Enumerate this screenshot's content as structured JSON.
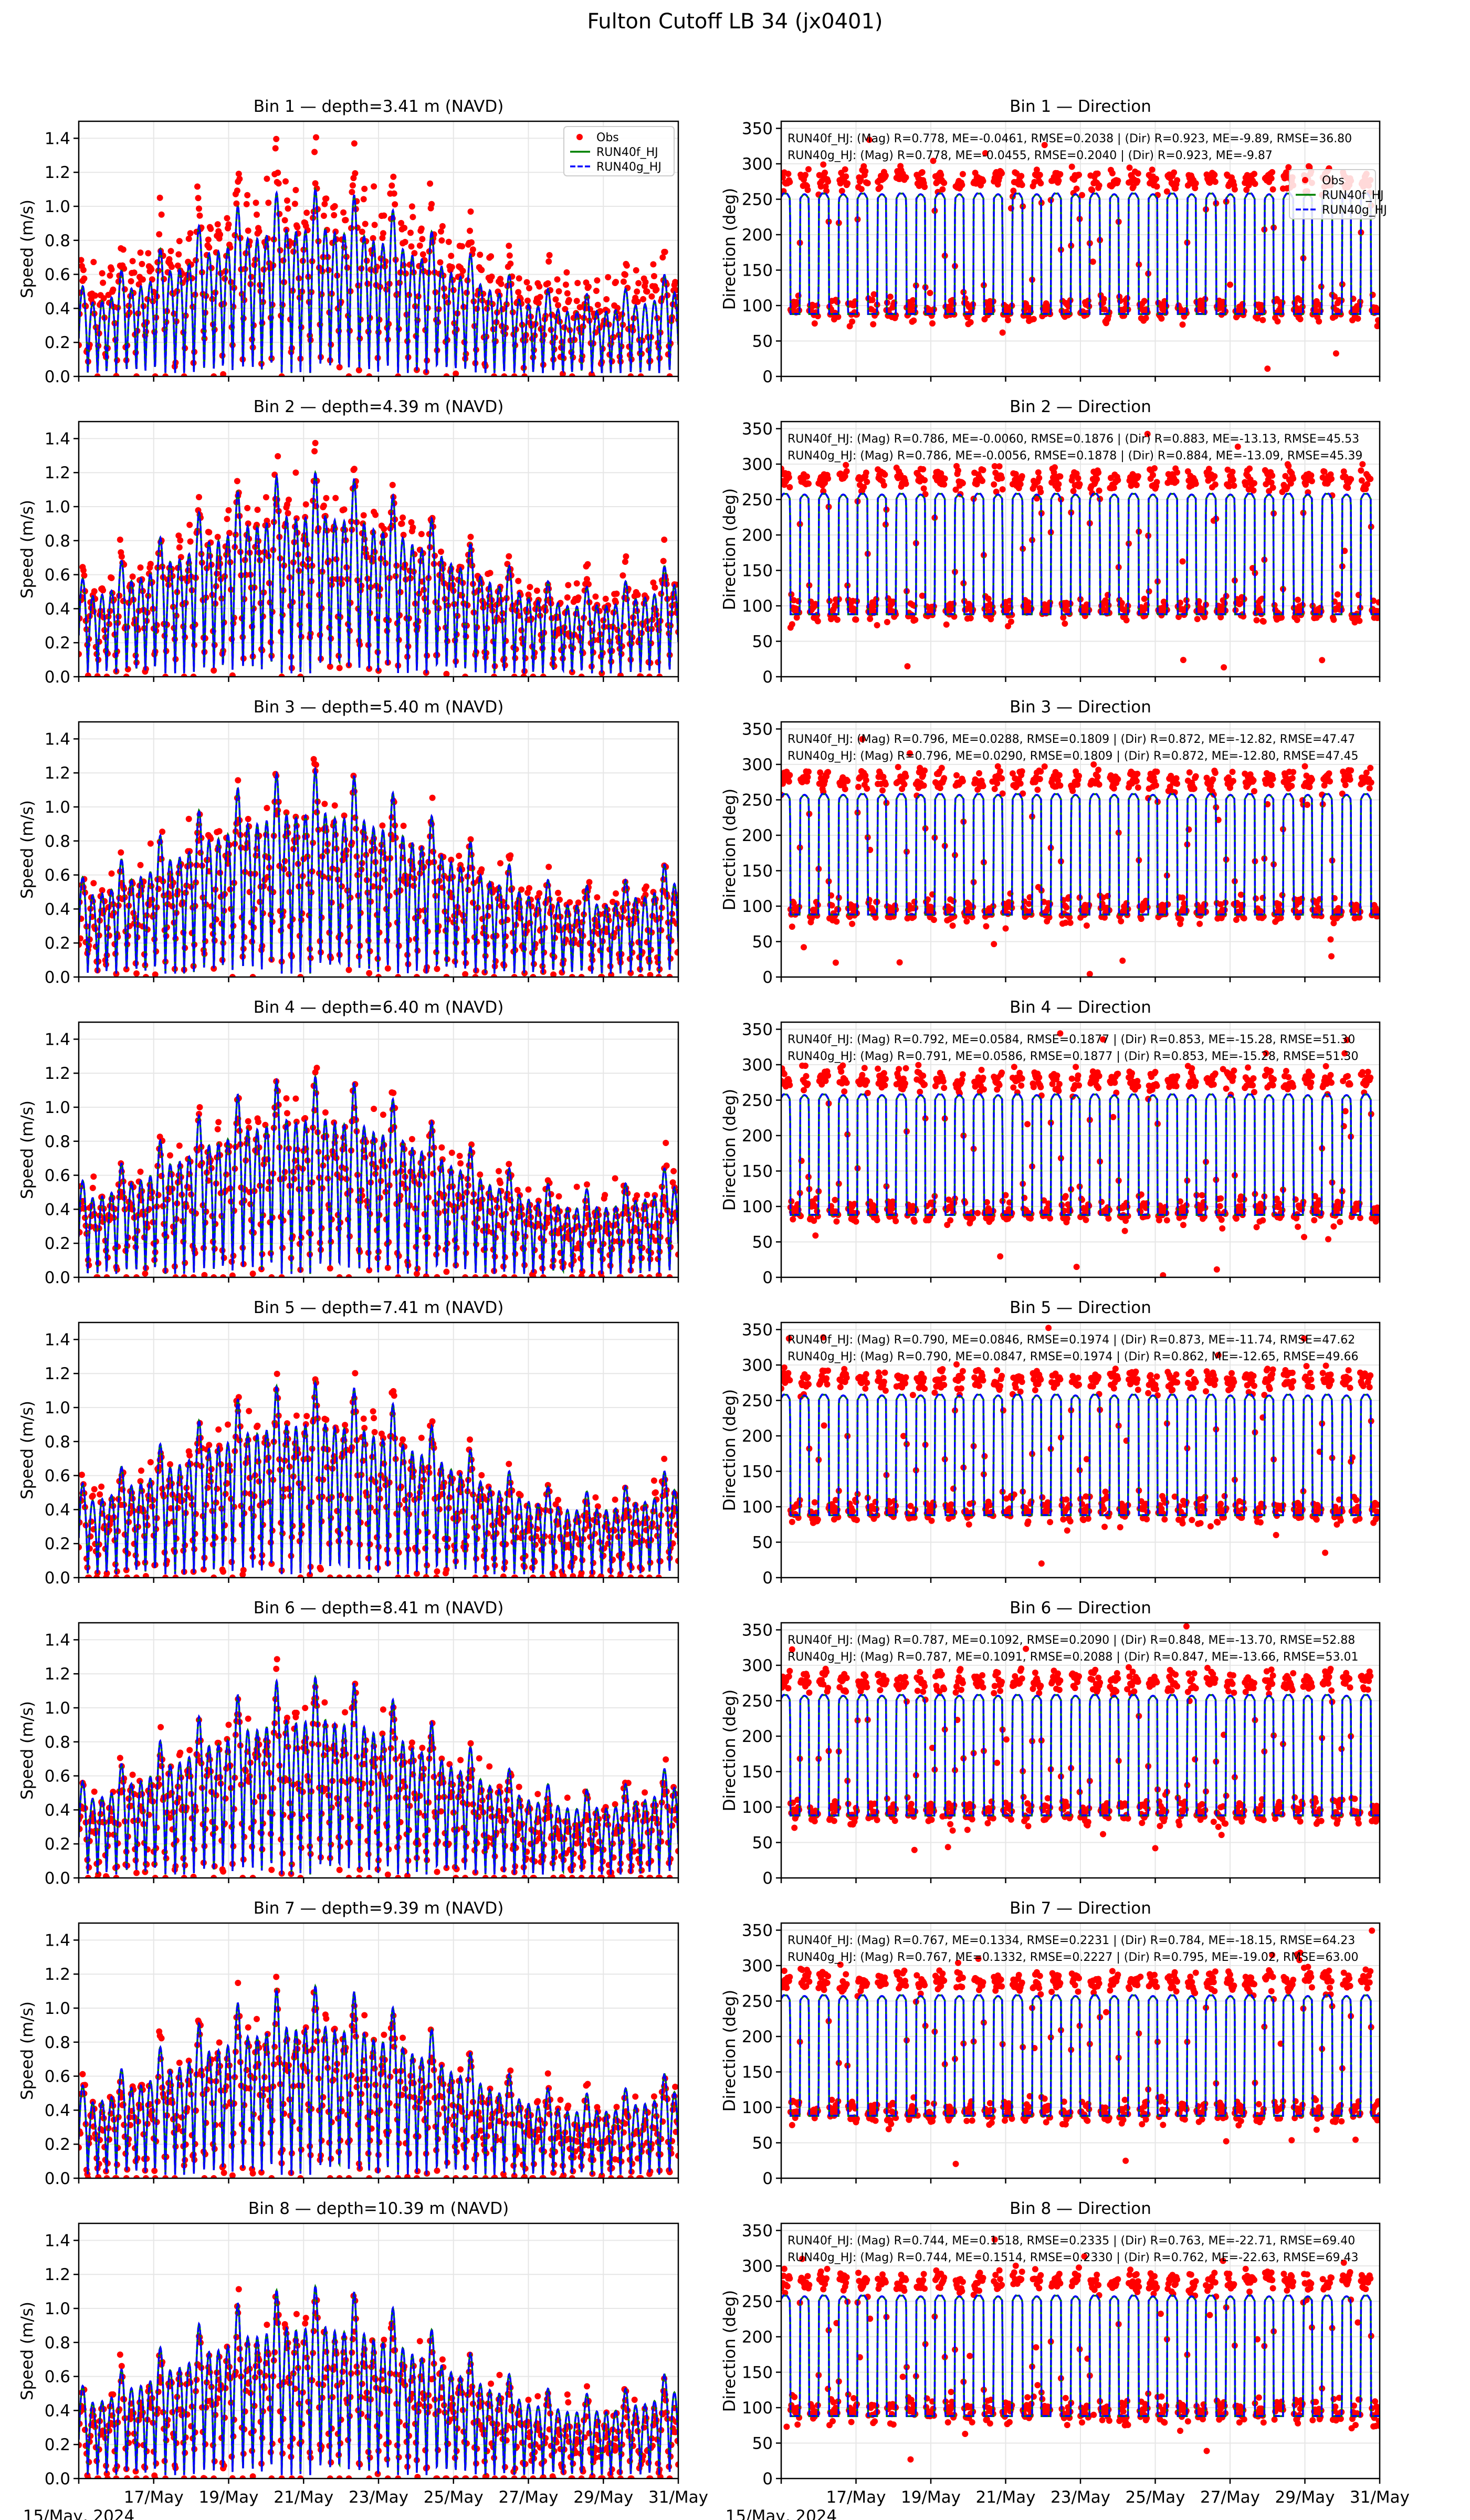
{
  "figure": {
    "title": "Fulton Cutoff LB 34 (jx0401)"
  },
  "colors": {
    "obs": "#ff0000",
    "run40f": "#008000",
    "run40g": "#0000ff",
    "grid": "#e6e6e6"
  },
  "chart_data": {
    "type": "scatter+line",
    "x_range": [
      "2024-05-15",
      "2024-05-31"
    ],
    "x_tick_labels": [
      "15/May, 2024",
      "17/May",
      "19/May",
      "21/May",
      "23/May",
      "25/May",
      "27/May",
      "29/May",
      "31/May"
    ],
    "legend": {
      "placement_speed": "top-right",
      "placement_direction": "top-right",
      "obs": "Obs",
      "run40f": "RUN40f_HJ",
      "run40g": "RUN40g_HJ"
    },
    "speed_axis": {
      "ylabel": "Speed (m/s)",
      "ylim": [
        0,
        1.5
      ],
      "ticks": [
        0,
        0.2,
        0.4,
        0.6,
        0.8,
        1.0,
        1.2,
        1.4
      ],
      "tick_labels": [
        "0.0",
        "0.2",
        "0.4",
        "0.6",
        "0.8",
        "1.0",
        "1.2",
        "1.4"
      ]
    },
    "direction_axis": {
      "ylabel": "Direction (deg)",
      "ylim": [
        0,
        360
      ],
      "ticks": [
        0,
        50,
        100,
        150,
        200,
        250,
        300,
        350
      ],
      "tick_labels": [
        "0",
        "50",
        "100",
        "150",
        "200",
        "250",
        "300",
        "350"
      ]
    },
    "tidal_period_hours": 12.42,
    "bins": [
      {
        "speed_title": "Bin 1 — depth=3.41 m (NAVD)",
        "dir_title": "Bin 1 — Direction",
        "obs_peak_speed": 1.3,
        "model_peak_speed": 1.1,
        "stats": [
          "RUN40f_HJ: (Mag) R=0.778, ME=-0.0461, RMSE=0.2038 | (Dir) R=0.923, ME=-9.89, RMSE=36.80",
          "RUN40g_HJ: (Mag) R=0.778, ME=-0.0455, RMSE=0.2040 | (Dir) R=0.923, ME=-9.87"
        ]
      },
      {
        "speed_title": "Bin 2 — depth=4.39 m (NAVD)",
        "dir_title": "Bin 2 — Direction",
        "obs_peak_speed": 1.25,
        "model_peak_speed": 1.2,
        "stats": [
          "RUN40f_HJ: (Mag) R=0.786, ME=-0.0060, RMSE=0.1876 | (Dir) R=0.883, ME=-13.13, RMSE=45.53",
          "RUN40g_HJ: (Mag) R=0.786, ME=-0.0056, RMSE=0.1878 | (Dir) R=0.884, ME=-13.09, RMSE=45.39"
        ]
      },
      {
        "speed_title": "Bin 3 — depth=5.40 m (NAVD)",
        "dir_title": "Bin 3 — Direction",
        "obs_peak_speed": 1.18,
        "model_peak_speed": 1.22,
        "stats": [
          "RUN40f_HJ: (Mag) R=0.796, ME=0.0288, RMSE=0.1809 | (Dir) R=0.872, ME=-12.82, RMSE=47.47",
          "RUN40g_HJ: (Mag) R=0.796, ME=0.0290, RMSE=0.1809 | (Dir) R=0.872, ME=-12.80, RMSE=47.45"
        ]
      },
      {
        "speed_title": "Bin 4 — depth=6.40 m (NAVD)",
        "dir_title": "Bin 4 — Direction",
        "obs_peak_speed": 1.16,
        "model_peak_speed": 1.18,
        "stats": [
          "RUN40f_HJ: (Mag) R=0.792, ME=0.0584, RMSE=0.1877 | (Dir) R=0.853, ME=-15.28, RMSE=51.30",
          "RUN40g_HJ: (Mag) R=0.791, ME=0.0586, RMSE=0.1877 | (Dir) R=0.853, ME=-15.28, RMSE=51.30"
        ]
      },
      {
        "speed_title": "Bin 5 — depth=7.41 m (NAVD)",
        "dir_title": "Bin 5 — Direction",
        "obs_peak_speed": 1.15,
        "model_peak_speed": 1.15,
        "stats": [
          "RUN40f_HJ: (Mag) R=0.790, ME=0.0846, RMSE=0.1974 | (Dir) R=0.873, ME=-11.74, RMSE=47.62",
          "RUN40g_HJ: (Mag) R=0.790, ME=0.0847, RMSE=0.1974 | (Dir) R=0.862, ME=-12.65, RMSE=49.66"
        ]
      },
      {
        "speed_title": "Bin 6 — depth=8.41 m (NAVD)",
        "dir_title": "Bin 6 — Direction",
        "obs_peak_speed": 1.15,
        "model_peak_speed": 1.18,
        "stats": [
          "RUN40f_HJ: (Mag) R=0.787, ME=0.1092, RMSE=0.2090 | (Dir) R=0.848, ME=-13.70, RMSE=52.88",
          "RUN40g_HJ: (Mag) R=0.787, ME=0.1091, RMSE=0.2088 | (Dir) R=0.847, ME=-13.66, RMSE=53.01"
        ]
      },
      {
        "speed_title": "Bin 7 — depth=9.39 m (NAVD)",
        "dir_title": "Bin 7 — Direction",
        "obs_peak_speed": 1.12,
        "model_peak_speed": 1.13,
        "stats": [
          "RUN40f_HJ: (Mag) R=0.767, ME=0.1334, RMSE=0.2231 | (Dir) R=0.784, ME=-18.15, RMSE=64.23",
          "RUN40g_HJ: (Mag) R=0.767, ME=0.1332, RMSE=0.2227 | (Dir) R=0.795, ME=-19.02, RMSE=63.00"
        ]
      },
      {
        "speed_title": "Bin 8 — depth=10.39 m (NAVD)",
        "dir_title": "Bin 8 — Direction",
        "obs_peak_speed": 1.1,
        "model_peak_speed": 1.13,
        "stats": [
          "RUN40f_HJ: (Mag) R=0.744, ME=0.1518, RMSE=0.2335 | (Dir) R=0.763, ME=-22.71, RMSE=69.40",
          "RUN40g_HJ: (Mag) R=0.744, ME=0.1514, RMSE=0.2330 | (Dir) R=0.762, ME=-22.63, RMSE=69.43"
        ]
      }
    ]
  }
}
